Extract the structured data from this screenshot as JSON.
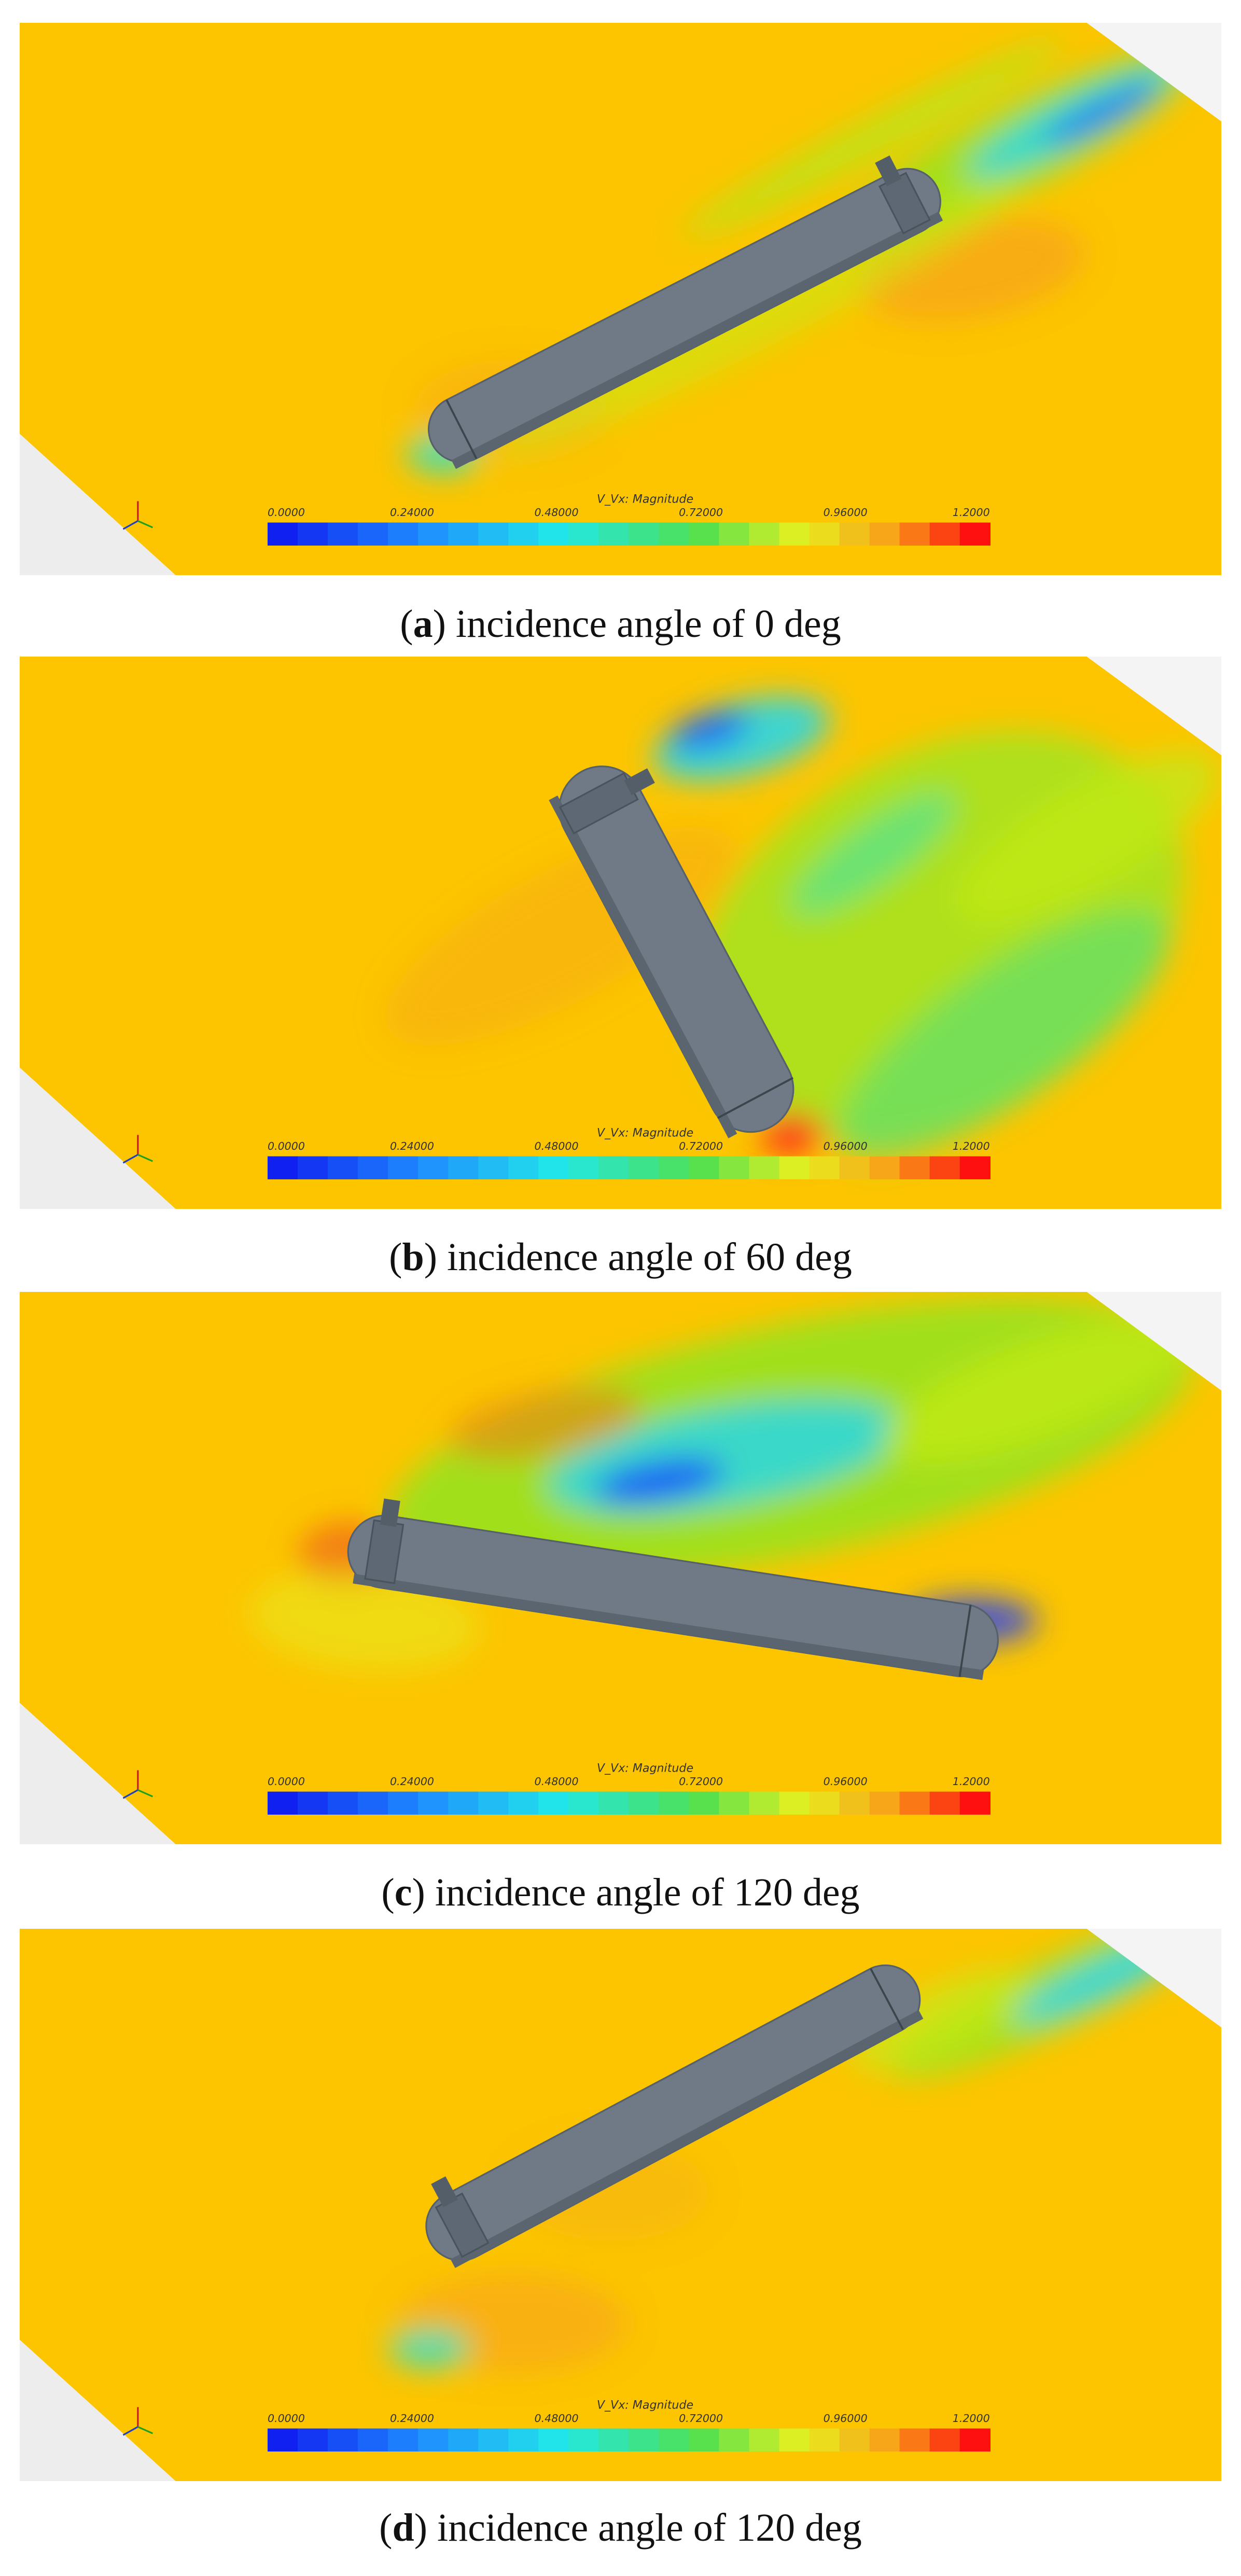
{
  "panels": [
    {
      "colorbar_title": "V_Vx: Magnitude",
      "colorbar_ticks": [
        "0.0000",
        "0.24000",
        "0.48000",
        "0.72000",
        "0.96000",
        "1.2000"
      ],
      "caption": {
        "open": "(",
        "letter": "a",
        "rest": ") incidence angle of 0 deg"
      }
    },
    {
      "colorbar_title": "V_Vx: Magnitude",
      "colorbar_ticks": [
        "0.0000",
        "0.24000",
        "0.48000",
        "0.72000",
        "0.96000",
        "1.2000"
      ],
      "caption": {
        "open": "(",
        "letter": "b",
        "rest": ") incidence angle of 60 deg"
      }
    },
    {
      "colorbar_title": "V_Vx: Magnitude",
      "colorbar_ticks": [
        "0.0000",
        "0.24000",
        "0.48000",
        "0.72000",
        "0.96000",
        "1.2000"
      ],
      "caption": {
        "open": "(",
        "letter": "c",
        "rest": ") incidence angle of 120 deg"
      }
    },
    {
      "colorbar_title": "V_Vx: Magnitude",
      "colorbar_ticks": [
        "0.0000",
        "0.24000",
        "0.48000",
        "0.72000",
        "0.96000",
        "1.2000"
      ],
      "caption": {
        "open": "(",
        "letter": "d",
        "rest": ") incidence angle of 120 deg"
      }
    }
  ]
}
